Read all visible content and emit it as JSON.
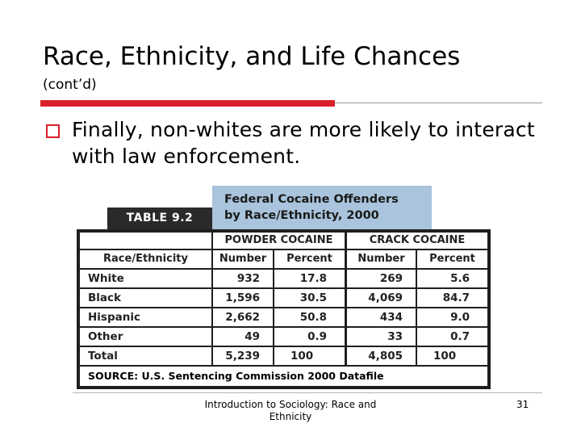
{
  "slide": {
    "title": "Race, Ethnicity, and Life Chances",
    "subtitle": "(cont’d)",
    "bullet": "Finally, non-whites are more likely to interact with law enforcement."
  },
  "table": {
    "label": "TABLE 9.2",
    "heading_line1": "Federal Cocaine Offenders",
    "heading_line2": "by Race/Ethnicity, 2000",
    "group1": "POWDER COCAINE",
    "group2": "CRACK COCAINE",
    "col_race": "Race/Ethnicity",
    "col_number": "Number",
    "col_percent": "Percent",
    "rows": [
      {
        "race": "White",
        "powder_number": "932",
        "powder_percent": "17.8",
        "crack_number": "269",
        "crack_percent": "5.6"
      },
      {
        "race": "Black",
        "powder_number": "1,596",
        "powder_percent": "30.5",
        "crack_number": "4,069",
        "crack_percent": "84.7"
      },
      {
        "race": "Hispanic",
        "powder_number": "2,662",
        "powder_percent": "50.8",
        "crack_number": "434",
        "crack_percent": "9.0"
      },
      {
        "race": "Other",
        "powder_number": "49",
        "powder_percent": "0.9",
        "crack_number": "33",
        "crack_percent": "0.7"
      },
      {
        "race": "Total",
        "powder_number": "5,239",
        "powder_percent": "100",
        "crack_number": "4,805",
        "crack_percent": "100"
      }
    ],
    "source": "SOURCE: U.S. Sentencing Commission 2000 Datafile"
  },
  "footer": {
    "text": "Introduction to Sociology: Race and Ethnicity",
    "page": "31"
  },
  "colors": {
    "accent_red": "#d9202a",
    "heading_blue": "#a9c4dc",
    "label_dark": "#2a2a2a"
  }
}
